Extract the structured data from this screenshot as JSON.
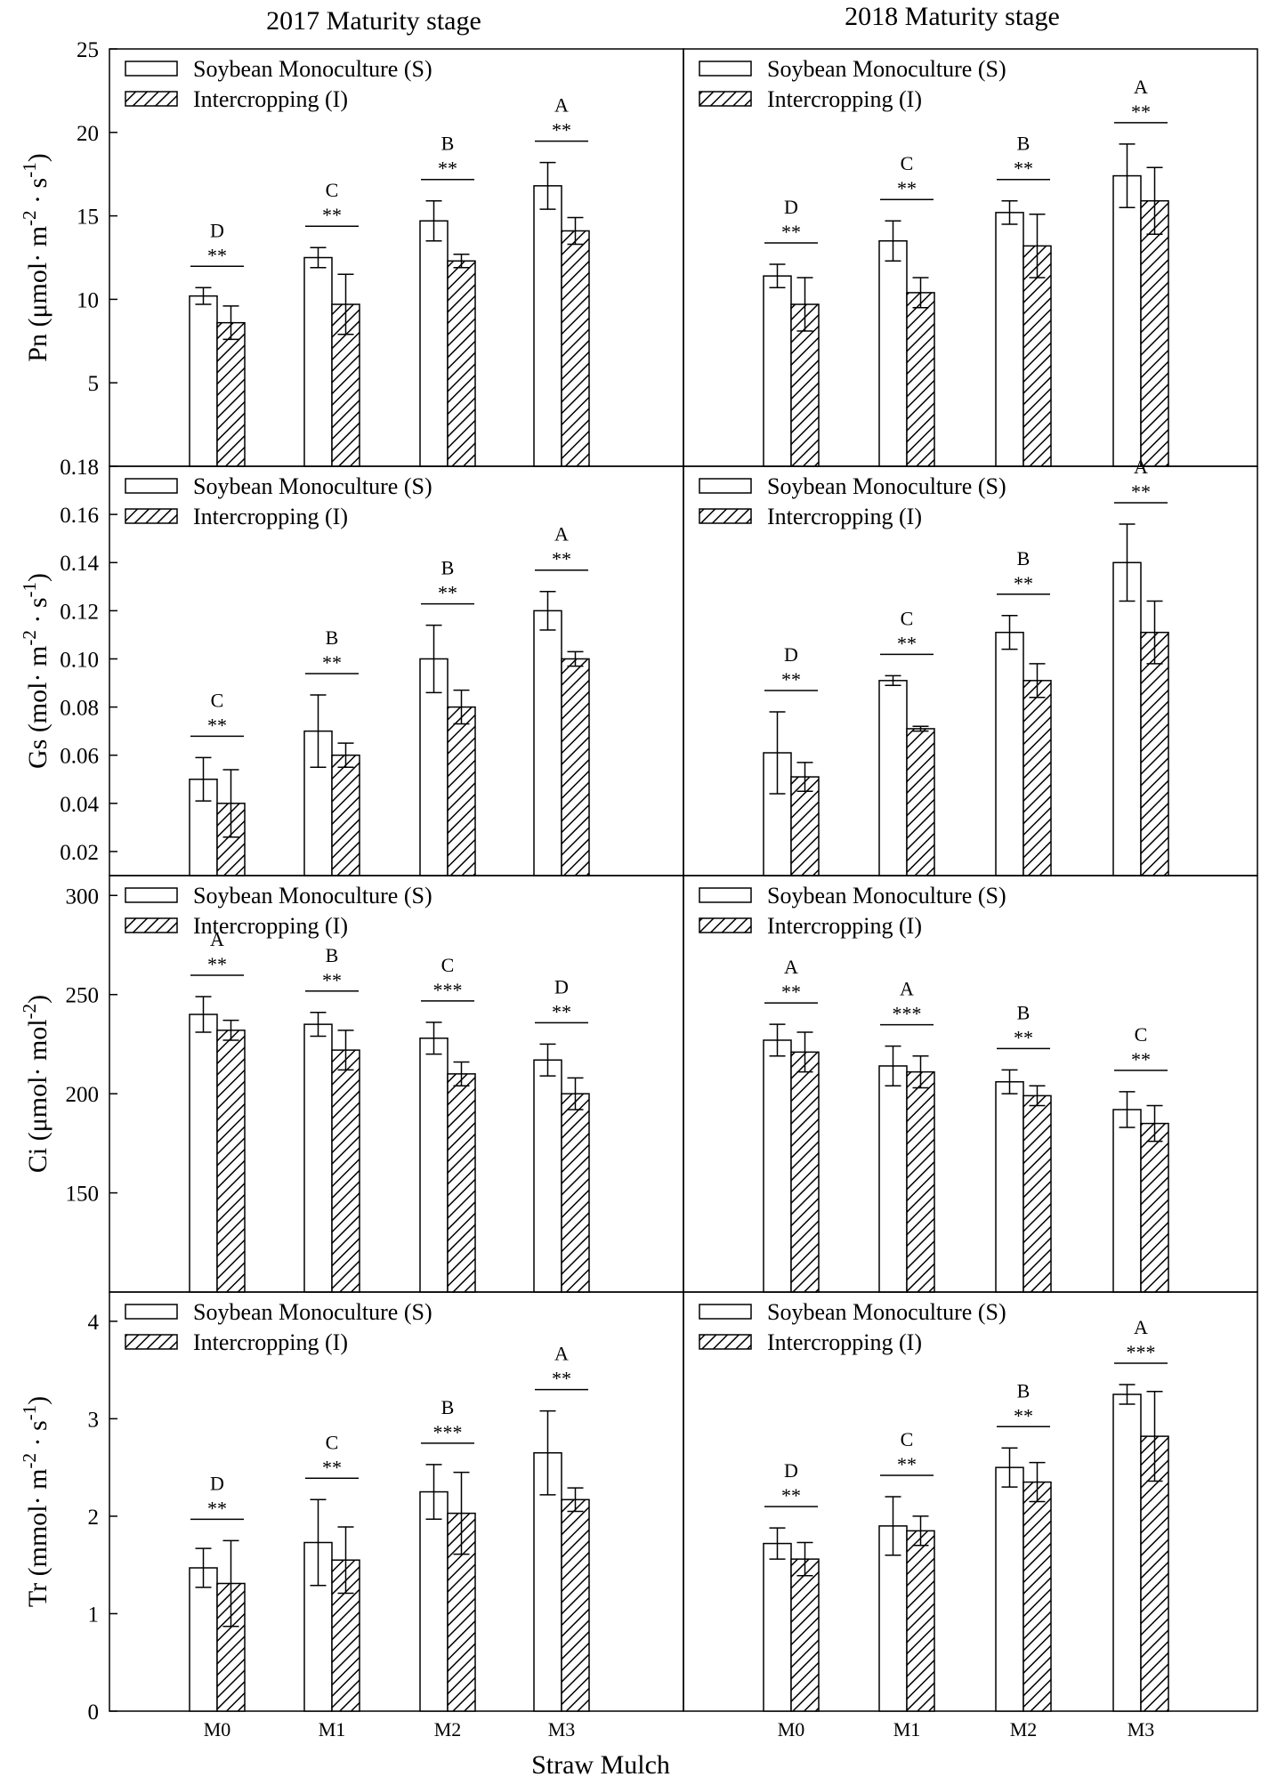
{
  "column_titles": [
    "2017 Maturity stage",
    "2018 Maturity stage"
  ],
  "x_axis_title": "Straw Mulch",
  "legend": {
    "series1": "Soybean Monoculture (S)",
    "series2": "Intercropping (I)"
  },
  "chart_data": [
    {
      "type": "bar",
      "panel": "Pn 2017",
      "title": "2017 Maturity stage",
      "ylabel": "Pn (μmol· m-2 · s-1)",
      "ylim": [
        0,
        25
      ],
      "yticks": [
        5,
        10,
        15,
        20,
        25
      ],
      "categories": [
        "M0",
        "M1",
        "M2",
        "M3"
      ],
      "series": [
        {
          "name": "Soybean Monoculture (S)",
          "values": [
            10.2,
            12.5,
            14.7,
            16.8
          ],
          "errors": [
            0.5,
            0.6,
            1.2,
            1.4
          ]
        },
        {
          "name": "Intercropping (I)",
          "values": [
            8.6,
            9.7,
            12.3,
            14.1
          ],
          "errors": [
            1.0,
            1.8,
            0.4,
            0.8
          ]
        }
      ],
      "significance": [
        "**",
        "**",
        "**",
        "**"
      ],
      "letters": [
        "D",
        "C",
        "B",
        "A"
      ]
    },
    {
      "type": "bar",
      "panel": "Pn 2018",
      "title": "2018 Maturity stage",
      "ylabel": "",
      "ylim": [
        0,
        25
      ],
      "yticks": [],
      "categories": [
        "M0",
        "M1",
        "M2",
        "M3"
      ],
      "series": [
        {
          "name": "Soybean Monoculture (S)",
          "values": [
            11.4,
            13.5,
            15.2,
            17.4
          ],
          "errors": [
            0.7,
            1.2,
            0.7,
            1.9
          ]
        },
        {
          "name": "Intercropping (I)",
          "values": [
            9.7,
            10.4,
            13.2,
            15.9
          ],
          "errors": [
            1.6,
            0.9,
            1.9,
            2.0
          ]
        }
      ],
      "significance": [
        "**",
        "**",
        "**",
        "**"
      ],
      "letters": [
        "D",
        "C",
        "B",
        "A"
      ]
    },
    {
      "type": "bar",
      "panel": "Gs 2017",
      "ylabel": "Gs (mol· m-2 · s-1)",
      "ylim": [
        0.01,
        0.18
      ],
      "yticks": [
        "0.02",
        "0.04",
        "0.06",
        "0.08",
        "0.10",
        "0.12",
        "0.14",
        "0.16",
        "0.18"
      ],
      "categories": [
        "M0",
        "M1",
        "M2",
        "M3"
      ],
      "series": [
        {
          "name": "Soybean Monoculture (S)",
          "values": [
            0.05,
            0.07,
            0.1,
            0.12
          ],
          "errors": [
            0.009,
            0.015,
            0.014,
            0.008
          ]
        },
        {
          "name": "Intercropping (I)",
          "values": [
            0.04,
            0.06,
            0.08,
            0.1
          ],
          "errors": [
            0.014,
            0.005,
            0.007,
            0.003
          ]
        }
      ],
      "significance": [
        "**",
        "**",
        "**",
        "**"
      ],
      "letters": [
        "C",
        "B",
        "B",
        "A"
      ]
    },
    {
      "type": "bar",
      "panel": "Gs 2018",
      "ylabel": "",
      "ylim": [
        0.01,
        0.18
      ],
      "yticks": [],
      "categories": [
        "M0",
        "M1",
        "M2",
        "M3"
      ],
      "series": [
        {
          "name": "Soybean Monoculture (S)",
          "values": [
            0.061,
            0.091,
            0.111,
            0.14
          ],
          "errors": [
            0.017,
            0.002,
            0.007,
            0.016
          ]
        },
        {
          "name": "Intercropping (I)",
          "values": [
            0.051,
            0.071,
            0.091,
            0.111
          ],
          "errors": [
            0.006,
            0.001,
            0.007,
            0.013
          ]
        }
      ],
      "significance": [
        "**",
        "**",
        "**",
        "**"
      ],
      "letters": [
        "D",
        "C",
        "B",
        "A"
      ]
    },
    {
      "type": "bar",
      "panel": "Ci 2017",
      "ylabel": "Ci (μmol· mol-2)",
      "ylim": [
        100,
        310
      ],
      "yticks": [
        150,
        200,
        250,
        300
      ],
      "categories": [
        "M0",
        "M1",
        "M2",
        "M3"
      ],
      "series": [
        {
          "name": "Soybean Monoculture (S)",
          "values": [
            240,
            235,
            228,
            217
          ],
          "errors": [
            9,
            6,
            8,
            8
          ]
        },
        {
          "name": "Intercropping (I)",
          "values": [
            232,
            222,
            210,
            200
          ],
          "errors": [
            5,
            10,
            6,
            8
          ]
        }
      ],
      "significance": [
        "**",
        "**",
        "***",
        "**"
      ],
      "letters": [
        "A",
        "B",
        "C",
        "D"
      ]
    },
    {
      "type": "bar",
      "panel": "Ci 2018",
      "ylabel": "",
      "ylim": [
        100,
        310
      ],
      "yticks": [],
      "categories": [
        "M0",
        "M1",
        "M2",
        "M3"
      ],
      "series": [
        {
          "name": "Soybean Monoculture (S)",
          "values": [
            227,
            214,
            206,
            192
          ],
          "errors": [
            8,
            10,
            6,
            9
          ]
        },
        {
          "name": "Intercropping (I)",
          "values": [
            221,
            211,
            199,
            185
          ],
          "errors": [
            10,
            8,
            5,
            9
          ]
        }
      ],
      "significance": [
        "**",
        "***",
        "**",
        "**"
      ],
      "letters": [
        "A",
        "A",
        "B",
        "C"
      ]
    },
    {
      "type": "bar",
      "panel": "Tr 2017",
      "ylabel": "Tr (mmol· m-2 · s-1)",
      "ylim": [
        0,
        4.3
      ],
      "yticks": [
        0,
        1,
        2,
        3,
        4
      ],
      "categories": [
        "M0",
        "M1",
        "M2",
        "M3"
      ],
      "series": [
        {
          "name": "Soybean Monoculture (S)",
          "values": [
            1.47,
            1.73,
            2.25,
            2.65
          ],
          "errors": [
            0.2,
            0.44,
            0.28,
            0.43
          ]
        },
        {
          "name": "Intercropping (I)",
          "values": [
            1.31,
            1.55,
            2.03,
            2.17
          ],
          "errors": [
            0.44,
            0.34,
            0.42,
            0.12
          ]
        }
      ],
      "significance": [
        "**",
        "**",
        "***",
        "**"
      ],
      "letters": [
        "D",
        "C",
        "B",
        "A"
      ]
    },
    {
      "type": "bar",
      "panel": "Tr 2018",
      "ylabel": "",
      "ylim": [
        0,
        4.3
      ],
      "yticks": [],
      "categories": [
        "M0",
        "M1",
        "M2",
        "M3"
      ],
      "series": [
        {
          "name": "Soybean Monoculture (S)",
          "values": [
            1.72,
            1.9,
            2.5,
            3.25
          ],
          "errors": [
            0.16,
            0.3,
            0.2,
            0.1
          ]
        },
        {
          "name": "Intercropping (I)",
          "values": [
            1.56,
            1.85,
            2.35,
            2.82
          ],
          "errors": [
            0.17,
            0.15,
            0.2,
            0.46
          ]
        }
      ],
      "significance": [
        "**",
        "**",
        "**",
        "***"
      ],
      "letters": [
        "D",
        "C",
        "B",
        "A"
      ]
    }
  ]
}
